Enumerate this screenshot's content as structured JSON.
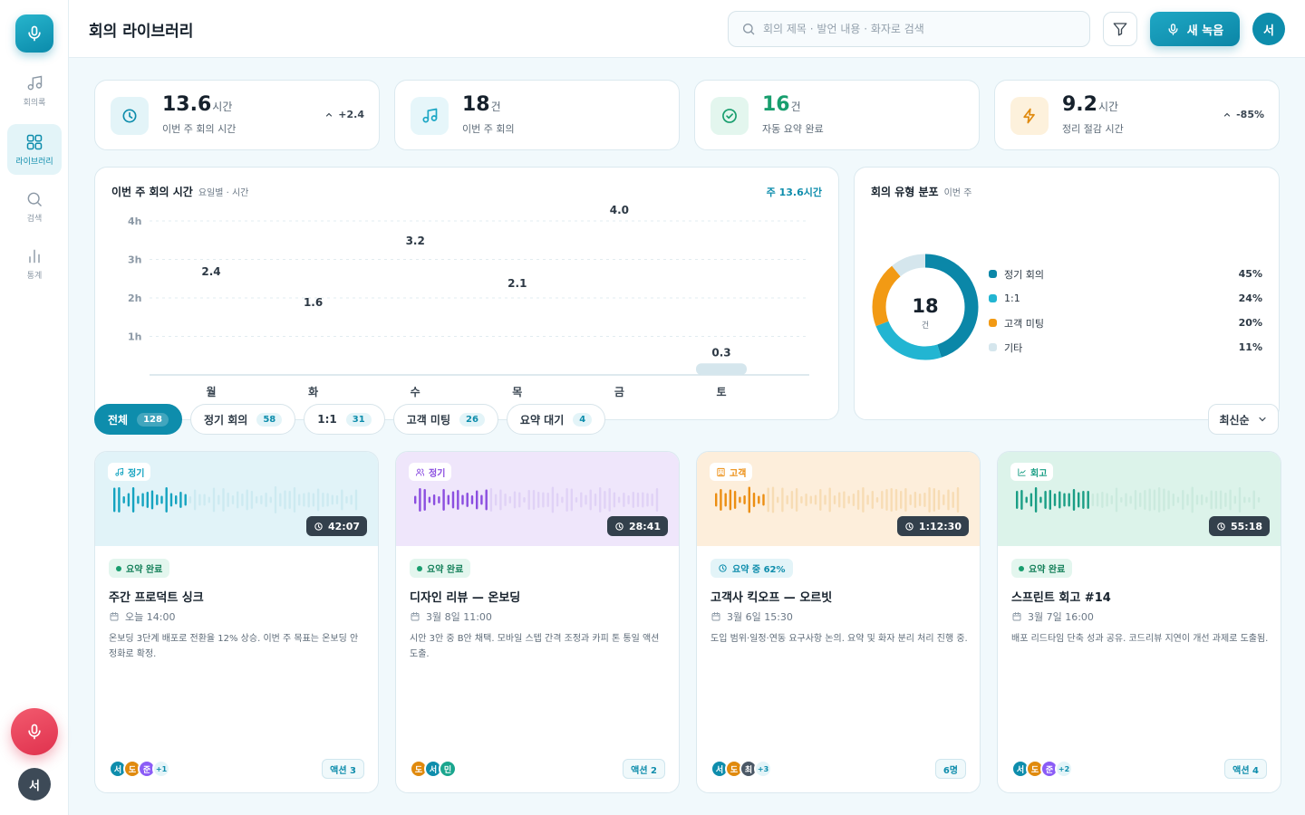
{
  "header": {
    "title": "회의 라이브러리",
    "search_placeholder": "회의 제목 · 발언 내용 · 화자로 검색",
    "new_record_label": "새 녹음",
    "avatar_initial": "서"
  },
  "sidebar": {
    "items": [
      {
        "label": "회의록",
        "icon": "music-note-icon"
      },
      {
        "label": "라이브러리",
        "icon": "grid-icon"
      },
      {
        "label": "검색",
        "icon": "search-icon"
      },
      {
        "label": "통계",
        "icon": "bar-chart-icon"
      }
    ],
    "avatar_initial": "서"
  },
  "stats": [
    {
      "value": "13.6",
      "unit": "시간",
      "label": "이번 주 회의 시간",
      "delta": "+2.4",
      "icon": "clock-icon",
      "color": "#0e8dac",
      "bg": "#e3f4f8"
    },
    {
      "value": "18",
      "unit": "건",
      "label": "이번 주 회의",
      "delta": "",
      "icon": "music-note-icon",
      "color": "#1aa6c4",
      "bg": "#e6f6fa"
    },
    {
      "value": "16",
      "unit": "건",
      "label": "자동 요약 완료",
      "delta": "",
      "icon": "check-circle-icon",
      "color": "#189e6e",
      "bg": "#e3f6ee"
    },
    {
      "value": "9.2",
      "unit": "시간",
      "label": "정리 절감 시간",
      "delta": "-85%",
      "icon": "lightning-icon",
      "color": "#e08a0e",
      "bg": "#fdf1dc"
    }
  ],
  "weekly_chart": {
    "title": "이번 주 회의 시간",
    "subtitle": "요일별 · 시간",
    "total": "주 13.6시간",
    "chart_data": {
      "type": "bar",
      "categories": [
        "월",
        "화",
        "수",
        "목",
        "금",
        "토"
      ],
      "values": [
        2.4,
        1.6,
        3.2,
        2.1,
        4.0,
        0.3
      ],
      "value_labels": [
        "2.4",
        "1.6",
        "3.2",
        "2.1",
        "4.0",
        "0.3"
      ],
      "yticks": [
        "1h",
        "2h",
        "3h",
        "4h"
      ],
      "ytick_values": [
        1,
        2,
        3,
        4
      ],
      "ylim": [
        0,
        4
      ],
      "highlight_index": 4,
      "grid": true
    }
  },
  "type_chart": {
    "title": "회의 유형 분포",
    "subtitle": "이번 주",
    "center_value": "18",
    "center_unit": "건",
    "chart_data": {
      "type": "pie",
      "labels": [
        "정기 회의",
        "1:1",
        "고객 미팅",
        "기타"
      ],
      "values": [
        45,
        24,
        20,
        11
      ],
      "value_labels": [
        "45%",
        "24%",
        "20%",
        "11%"
      ],
      "colors": [
        "#0b87a8",
        "#22b5d2",
        "#f29a14",
        "#d5e6ed"
      ],
      "legend": "right"
    }
  },
  "filters": [
    {
      "label": "전체",
      "count": "128",
      "active": true
    },
    {
      "label": "정기 회의",
      "count": "58",
      "active": false
    },
    {
      "label": "1:1",
      "count": "31",
      "active": false
    },
    {
      "label": "고객 미팅",
      "count": "26",
      "active": false
    },
    {
      "label": "요약 대기",
      "count": "4",
      "active": false
    }
  ],
  "sort_label": "최신순",
  "meetings": [
    {
      "tag": "정기",
      "tag_icon": "music-note-icon",
      "duration": "42:07",
      "status": "요약 완료",
      "status_kind": "done",
      "title": "주간 프로덕트 싱크",
      "date": "오늘 14:00",
      "summary": "온보딩 3단계 배포로 전환율 12% 상승. 이번 주 목표는 온보딩 안정화로 확정.",
      "avatars": [
        "서",
        "도",
        "준"
      ],
      "avatar_colors": [
        "#0e8dac",
        "#e08a0e",
        "#8b5cf6"
      ],
      "more": "+1",
      "badge": "액션 3",
      "color": "#14a3c0",
      "fade": "#cdeaf1",
      "thumb": "#e1f3f8",
      "progress": 0.0
    },
    {
      "tag": "정기",
      "tag_icon": "people-icon",
      "duration": "28:41",
      "status": "요약 완료",
      "status_kind": "done",
      "title": "디자인 리뷰 — 온보딩",
      "date": "3월 8일 11:00",
      "summary": "시안 3안 중 B안 채택. 모바일 스텝 간격 조정과 카피 톤 통일 액션 도출.",
      "avatars": [
        "도",
        "서",
        "민"
      ],
      "avatar_colors": [
        "#e08a0e",
        "#0e8dac",
        "#1aa68e"
      ],
      "more": "",
      "badge": "액션 2",
      "color": "#8b4ee0",
      "fade": "#e0d2f6",
      "thumb": "#efe6fb",
      "progress": 0.0
    },
    {
      "tag": "고객",
      "tag_icon": "building-icon",
      "duration": "1:12:30",
      "status": "요약 중 62%",
      "status_kind": "progress",
      "title": "고객사 킥오프 — 오르빗",
      "date": "3월 6일 15:30",
      "summary": "도입 범위·일정·연동 요구사항 논의. 요약 및 화자 분리 처리 진행 중.",
      "avatars": [
        "서",
        "도",
        "최"
      ],
      "avatar_colors": [
        "#0e8dac",
        "#e08a0e",
        "#4b5866"
      ],
      "more": "+3",
      "badge": "6명",
      "color": "#ec8e12",
      "fade": "#f7dcb4",
      "thumb": "#fdeedb",
      "progress": 0.62
    },
    {
      "tag": "회고",
      "tag_icon": "trend-icon",
      "duration": "55:18",
      "status": "요약 완료",
      "status_kind": "done",
      "title": "스프린트 회고 #14",
      "date": "3월 7일 16:00",
      "summary": "배포 리드타임 단축 성과 공유. 코드리뷰 지연이 개선 과제로 도출됨.",
      "avatars": [
        "서",
        "도",
        "준"
      ],
      "avatar_colors": [
        "#0e8dac",
        "#e08a0e",
        "#8b5cf6"
      ],
      "more": "+2",
      "badge": "액션 4",
      "color": "#1a9e85",
      "fade": "#cbeade",
      "thumb": "#dcf3ea",
      "progress": 0.0
    }
  ]
}
